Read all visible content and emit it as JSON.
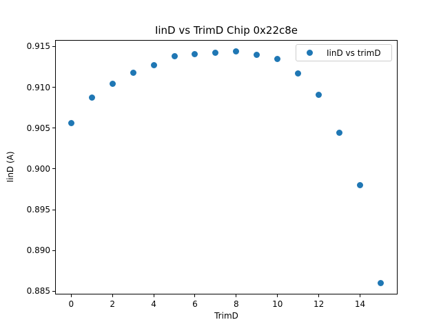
{
  "figure": {
    "background": "#ffffff",
    "spine_color": "#000000",
    "legend_border_color": "#cccccc"
  },
  "chart_data": {
    "type": "scatter",
    "title": "IinD vs TrimD Chip 0x22c8e",
    "xlabel": "TrimD",
    "ylabel": "IinD (A)",
    "grid": false,
    "xlim": [
      -0.78,
      15.82
    ],
    "ylim": [
      0.8846,
      0.9158
    ],
    "x_ticks": {
      "values": [
        0,
        2,
        4,
        6,
        8,
        10,
        12,
        14
      ],
      "labels": [
        "0",
        "2",
        "4",
        "6",
        "8",
        "10",
        "12",
        "14"
      ]
    },
    "y_ticks": {
      "values": [
        0.885,
        0.89,
        0.895,
        0.9,
        0.905,
        0.91,
        0.915
      ],
      "labels": [
        "0.885",
        "0.890",
        "0.895",
        "0.900",
        "0.905",
        "0.910",
        "0.915"
      ]
    },
    "series": [
      {
        "name": "IinD vs trimD",
        "marker": "circle",
        "color": "#1f77b4",
        "x": [
          0,
          1,
          2,
          3,
          4,
          5,
          6,
          7,
          8,
          9,
          10,
          11,
          12,
          13,
          14,
          15
        ],
        "y": [
          0.9056,
          0.9087,
          0.9104,
          0.9118,
          0.9127,
          0.9138,
          0.9141,
          0.9142,
          0.9144,
          0.914,
          0.9135,
          0.9117,
          0.9091,
          0.9044,
          0.898,
          0.886
        ]
      }
    ],
    "legend": {
      "position": "upper right",
      "entries": [
        {
          "label": "IinD vs trimD",
          "marker_color": "#1f77b4"
        }
      ]
    }
  }
}
